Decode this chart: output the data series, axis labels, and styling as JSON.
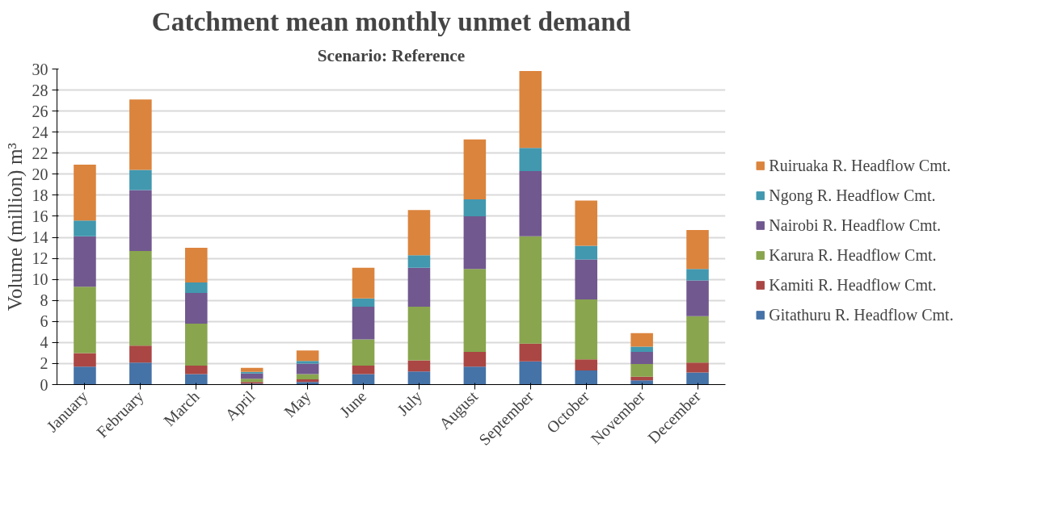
{
  "chart_data": {
    "type": "bar",
    "stacked": true,
    "title": "Catchment mean monthly unmet demand",
    "subtitle": "Scenario: Reference",
    "ylabel": "Volume (million) m³",
    "categories": [
      "January",
      "February",
      "March",
      "April",
      "May",
      "June",
      "July",
      "August",
      "September",
      "October",
      "November",
      "December"
    ],
    "series": [
      {
        "name": "Gitathuru R. Headflow Cmt.",
        "color": "#4572a7",
        "values": [
          1.7,
          2.1,
          1.0,
          0.1,
          0.25,
          1.0,
          1.25,
          1.7,
          2.2,
          1.35,
          0.4,
          1.15
        ]
      },
      {
        "name": "Kamiti R. Headflow Cmt.",
        "color": "#aa4643",
        "values": [
          1.3,
          1.6,
          0.8,
          0.15,
          0.25,
          0.8,
          1.05,
          1.4,
          1.7,
          1.05,
          0.35,
          0.95
        ]
      },
      {
        "name": "Karura R. Headflow Cmt.",
        "color": "#89a54e",
        "values": [
          6.3,
          9.0,
          4.0,
          0.3,
          0.5,
          2.5,
          5.1,
          7.9,
          10.2,
          5.7,
          1.2,
          4.4
        ]
      },
      {
        "name": "Nairobi R. Headflow Cmt.",
        "color": "#71588f",
        "values": [
          4.8,
          5.8,
          2.9,
          0.5,
          1.0,
          3.1,
          3.7,
          5.0,
          6.2,
          3.8,
          1.15,
          3.4
        ]
      },
      {
        "name": "Ngong R. Headflow Cmt.",
        "color": "#4198af",
        "values": [
          1.5,
          1.9,
          1.0,
          0.15,
          0.25,
          0.8,
          1.2,
          1.6,
          2.2,
          1.3,
          0.5,
          1.1
        ]
      },
      {
        "name": "Ruiruaka R. Headflow Cmt.",
        "color": "#db843d",
        "values": [
          5.3,
          6.7,
          3.3,
          0.4,
          1.0,
          2.9,
          4.3,
          5.7,
          7.3,
          4.3,
          1.3,
          3.7
        ]
      }
    ],
    "ylim": [
      0,
      30
    ],
    "yticks": [
      0,
      2,
      4,
      6,
      8,
      10,
      12,
      14,
      16,
      18,
      20,
      22,
      24,
      26,
      28,
      30
    ],
    "grid": "y",
    "legend": "right"
  }
}
